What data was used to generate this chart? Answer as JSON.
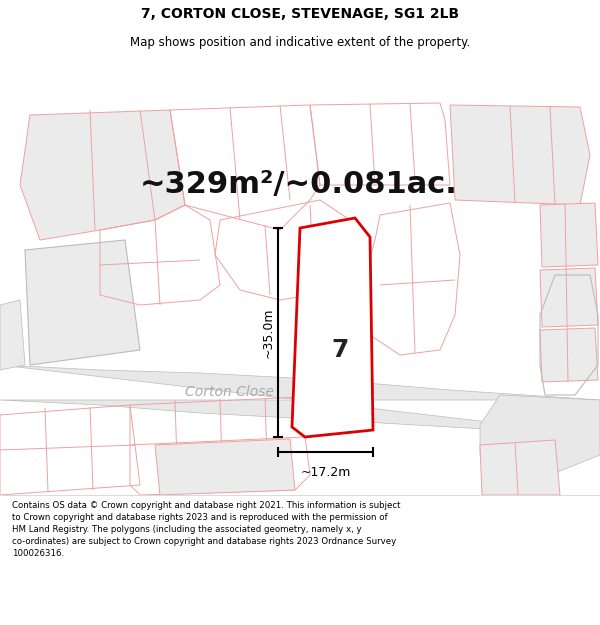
{
  "title": "7, CORTON CLOSE, STEVENAGE, SG1 2LB",
  "subtitle": "Map shows position and indicative extent of the property.",
  "area_text": "~329m²/~0.081ac.",
  "dim_height": "~35.0m",
  "dim_width": "~17.2m",
  "street_label": "Corton Close",
  "plot_number": "7",
  "footer_text": "Contains OS data © Crown copyright and database right 2021. This information is subject to Crown copyright and database rights 2023 and is reproduced with the permission of HM Land Registry. The polygons (including the associated geometry, namely x, y co-ordinates) are subject to Crown copyright and database rights 2023 Ordnance Survey 100026316.",
  "bg_color": "#ffffff",
  "map_bg": "#ffffff",
  "outline_color": "#f0a0a0",
  "plot_outline_color": "#dd0000",
  "gray_outline_color": "#bbbbbb",
  "road_fill": "#e8e8e8",
  "block_fill": "#ebebeb",
  "title_color": "#000000",
  "footer_color": "#000000",
  "title_fontsize": 10,
  "subtitle_fontsize": 8.5,
  "area_fontsize": 22,
  "plot_num_fontsize": 18,
  "dim_fontsize": 9,
  "street_fontsize": 10,
  "footer_fontsize": 6.2
}
